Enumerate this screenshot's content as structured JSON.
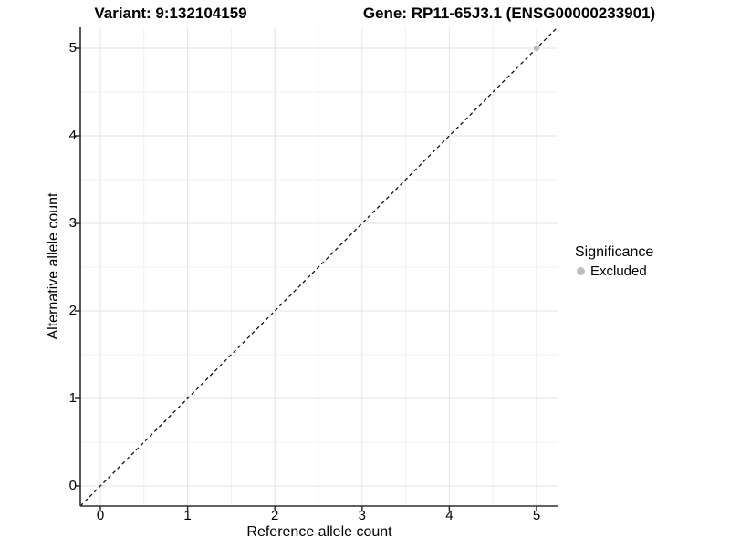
{
  "titles": {
    "variant": "Variant: 9:132104159",
    "gene": "Gene: RP11-65J3.1 (ENSG00000233901)"
  },
  "legend": {
    "title": "Significance",
    "items": [
      {
        "label": "Excluded",
        "color": "#bebebe"
      }
    ]
  },
  "colors": {
    "grid_major": "#e3e3e3",
    "grid_minor": "#f1f1f1",
    "axis_line": "#2e2e2e",
    "tick_mark": "#2e2e2e",
    "dashed_line": "#111111",
    "text": "#000000",
    "background": "#ffffff"
  },
  "chart_data": {
    "type": "scatter",
    "title": "Variant: 9:132104159 | Gene: RP11-65J3.1 (ENSG00000233901)",
    "xlabel": "Reference allele count",
    "ylabel": "Alternative allele count",
    "xlim": [
      -0.23,
      5.24
    ],
    "ylim": [
      -0.23,
      5.24
    ],
    "x_ticks": [
      0,
      1,
      2,
      3,
      4,
      5
    ],
    "y_ticks": [
      0,
      1,
      2,
      3,
      4,
      5
    ],
    "x_minor_ticks": [
      0.5,
      1.5,
      2.5,
      3.5,
      4.5
    ],
    "y_minor_ticks": [
      0.5,
      1.5,
      2.5,
      3.5,
      4.5
    ],
    "grid": "major+minor",
    "series": [
      {
        "name": "Excluded",
        "color": "#bebebe",
        "points": [
          {
            "x": 5,
            "y": 5
          }
        ]
      }
    ],
    "reference_line": {
      "type": "identity",
      "slope": 1,
      "intercept": 0,
      "style": "dashed",
      "color": "#111111"
    },
    "legend_position": "right"
  }
}
